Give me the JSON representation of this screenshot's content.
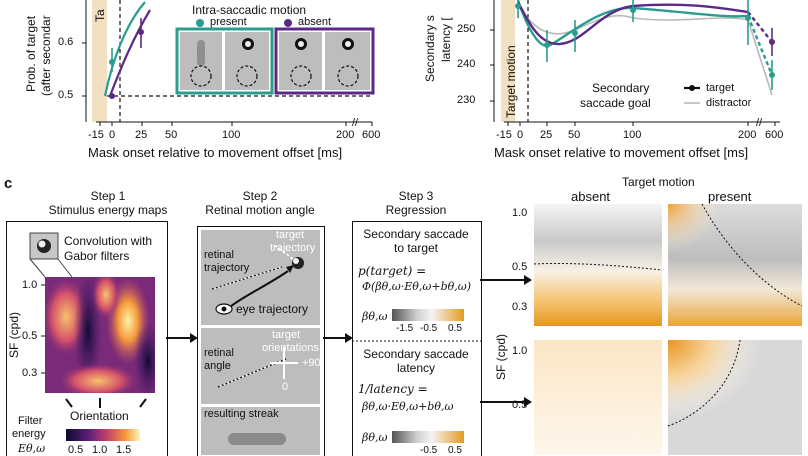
{
  "panel_left": {
    "ylabel_lines": [
      "Prob. of target",
      "(after secondar"
    ],
    "yticks": [
      "0.6",
      "0.5"
    ],
    "xticks": [
      "-15",
      "0",
      "25",
      "50",
      "100",
      "200",
      "600"
    ],
    "xlabel": "Mask onset relative to movement offset [ms]",
    "shade_label": "Ta",
    "legend_title": "Intra-saccadic motion",
    "legend_present": "present",
    "legend_absent": "absent",
    "colors": {
      "present": "#2a9d8f",
      "absent": "#5b2a86",
      "shade": "#f1e1c2"
    }
  },
  "panel_right": {
    "ylabel_lines": [
      "Secondary s",
      "latency ["
    ],
    "yticks": [
      "250",
      "240",
      "230"
    ],
    "xticks": [
      "-15",
      "0",
      "25",
      "50",
      "100",
      "200",
      "600"
    ],
    "xlabel": "Mask onset relative to movement offset [ms]",
    "shade_label": "Target motion",
    "legend_title_lines": [
      "Secondary",
      "saccade goal"
    ],
    "legend_target": "target",
    "legend_distractor": "distractor"
  },
  "panel_c": {
    "letter": "c",
    "step1": {
      "title_lines": [
        "Step 1",
        "Stimulus energy maps"
      ],
      "conv_lines": [
        "Convolution with",
        "Gabor filters"
      ],
      "ylabel": "SF (cpd)",
      "yticks": [
        "1.0",
        "0.5",
        "0.3"
      ],
      "xlabel": "Orientation",
      "cbar_label_lines": [
        "Filter",
        "energy"
      ],
      "cbar_symbol": "Eθ,ω",
      "cbar_ticks": [
        "0.5",
        "1.0",
        "1.5"
      ]
    },
    "step2": {
      "title_lines": [
        "Step 2",
        "Retinal motion angle"
      ],
      "retinal_trajectory_lines": [
        "retinal",
        "trajectory"
      ],
      "target_trajectory_lines": [
        "target",
        "trajectory"
      ],
      "eye_trajectory": "eye trajectory",
      "retinal_angle_lines": [
        "retinal",
        "angle"
      ],
      "target_orientations_lines": [
        "target",
        "orientations"
      ],
      "plus90": "+90",
      "zero": "0",
      "resulting_streak": "resulting streak"
    },
    "step3": {
      "title_lines": [
        "Step 3",
        "Regression"
      ],
      "box1_title_lines": [
        "Secondary saccade",
        "to target"
      ],
      "eq1_line1": "p(target) =",
      "eq1_line2": "Φ(βθ,ω·Eθ,ω+bθ,ω)",
      "beta_symbol": "βθ,ω",
      "scale1_ticks": [
        "-1.5",
        "-0.5",
        "0.5"
      ],
      "box2_title_lines": [
        "Secondary saccade",
        "latency"
      ],
      "eq2_line1": "1/latency =",
      "eq2_line2": "βθ,ω·Eθ,ω+bθ,ω",
      "scale2_ticks": [
        "-0.5",
        "0.5"
      ]
    },
    "maps": {
      "title": "Target motion",
      "col_absent": "absent",
      "col_present": "present",
      "ylabel": "SF (cpd)",
      "yticks": [
        "1.0",
        "0.5",
        "0.3"
      ]
    }
  },
  "chart_data": [
    {
      "type": "line",
      "title": "",
      "ylabel": "Prob. of target (after secondar",
      "xlabel": "Mask onset relative to movement offset [ms]",
      "x": [
        -15,
        0,
        25,
        50,
        100,
        200,
        600
      ],
      "ylim": [
        0.48,
        0.66
      ],
      "series": [
        {
          "name": "present",
          "points": [
            [
              0,
              0.56
            ],
            [
              25,
              0.64
            ]
          ]
        },
        {
          "name": "absent",
          "points": [
            [
              0,
              0.5
            ],
            [
              25,
              0.62
            ]
          ]
        }
      ]
    },
    {
      "type": "line",
      "title": "",
      "ylabel": "Secondary s latency [",
      "xlabel": "Mask onset relative to movement offset [ms]",
      "x": [
        -15,
        0,
        25,
        50,
        100,
        200,
        600
      ],
      "ylim": [
        226,
        258
      ],
      "series": [
        {
          "name": "target",
          "color": "#2a9d8f",
          "points": [
            [
              -15,
              256
            ],
            [
              25,
              245
            ],
            [
              50,
              250
            ],
            [
              100,
              256
            ],
            [
              200,
              254
            ],
            [
              600,
              240
            ]
          ]
        },
        {
          "name": "target",
          "color": "#5b2a86",
          "points": [
            [
              -15,
              252
            ],
            [
              25,
              246
            ],
            [
              50,
              246
            ],
            [
              100,
              254
            ],
            [
              200,
              253
            ],
            [
              600,
              248
            ]
          ]
        }
      ]
    }
  ]
}
